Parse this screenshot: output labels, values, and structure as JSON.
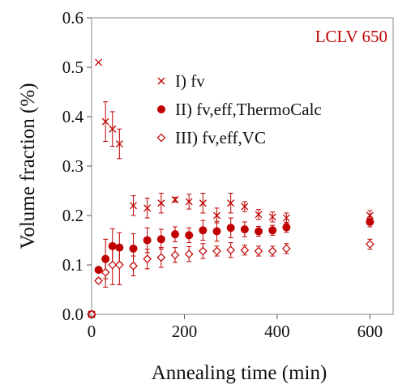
{
  "chart_data": {
    "type": "scatter",
    "xlabel": "Annealing time (min)",
    "ylabel": "Volume fraction (%)",
    "xlim": [
      0,
      650
    ],
    "ylim": [
      0,
      0.6
    ],
    "x_ticks": [
      0,
      200,
      400,
      600
    ],
    "y_ticks": [
      0.0,
      0.1,
      0.2,
      0.3,
      0.4,
      0.5,
      0.6
    ],
    "y_tick_labels": [
      "0.0",
      "0.1",
      "0.2",
      "0.3",
      "0.4",
      "0.5",
      "0.6"
    ],
    "grid": false,
    "legend_position": "center-right",
    "annotation": {
      "text": "LCLV 650",
      "position": "top-right",
      "color": "#c00000"
    },
    "color": "#c00000",
    "series": [
      {
        "name": "I) fv",
        "marker": "x",
        "x": [
          0,
          15,
          30,
          45,
          60,
          90,
          120,
          150,
          180,
          210,
          240,
          270,
          300,
          330,
          360,
          390,
          420,
          600
        ],
        "y": [
          0.0,
          0.51,
          0.39,
          0.375,
          0.345,
          0.22,
          0.215,
          0.225,
          0.232,
          0.228,
          0.225,
          0.2,
          0.225,
          0.218,
          0.202,
          0.197,
          0.195,
          0.2
        ],
        "err": [
          0,
          0,
          0.04,
          0.035,
          0.03,
          0.02,
          0.02,
          0.02,
          0.005,
          0.015,
          0.02,
          0.015,
          0.02,
          0.01,
          0.01,
          0.01,
          0.01,
          0.01
        ]
      },
      {
        "name": "II) fv,eff,ThermoCalc",
        "marker": "filled-circle",
        "x": [
          0,
          15,
          30,
          45,
          60,
          90,
          120,
          150,
          180,
          210,
          240,
          270,
          300,
          330,
          360,
          390,
          420,
          600
        ],
        "y": [
          0.0,
          0.09,
          0.112,
          0.138,
          0.135,
          0.133,
          0.15,
          0.152,
          0.162,
          0.16,
          0.17,
          0.168,
          0.175,
          0.172,
          0.168,
          0.17,
          0.176,
          0.187
        ],
        "err": [
          0,
          0.005,
          0.04,
          0.035,
          0.03,
          0.03,
          0.025,
          0.02,
          0.015,
          0.015,
          0.02,
          0.02,
          0.02,
          0.015,
          0.01,
          0.01,
          0.01,
          0.01
        ]
      },
      {
        "name": "III) fv,eff,VC",
        "marker": "open-diamond",
        "x": [
          0,
          15,
          30,
          45,
          60,
          90,
          120,
          150,
          180,
          210,
          240,
          270,
          300,
          330,
          360,
          390,
          420,
          600
        ],
        "y": [
          0.0,
          0.068,
          0.085,
          0.1,
          0.1,
          0.098,
          0.112,
          0.115,
          0.12,
          0.122,
          0.128,
          0.128,
          0.13,
          0.13,
          0.128,
          0.128,
          0.133,
          0.142
        ],
        "err": [
          0,
          0.005,
          0.03,
          0.04,
          0.04,
          0.02,
          0.02,
          0.02,
          0.015,
          0.015,
          0.015,
          0.01,
          0.015,
          0.01,
          0.01,
          0.01,
          0.01,
          0.01
        ]
      }
    ]
  }
}
